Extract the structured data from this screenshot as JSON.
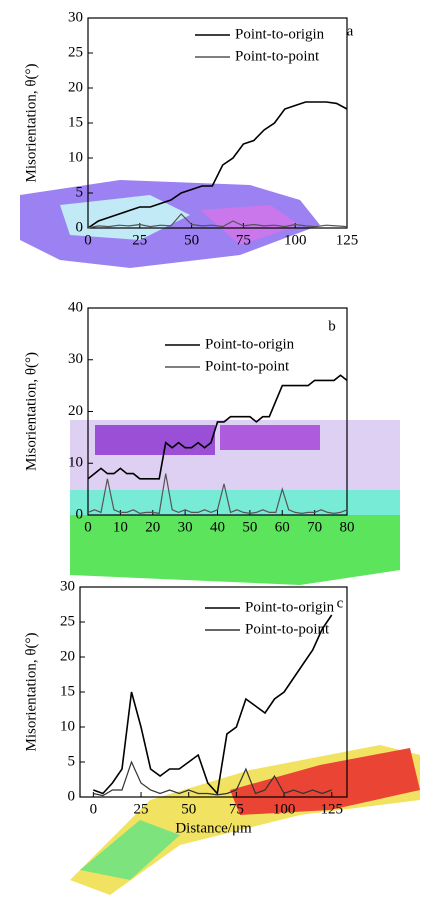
{
  "chart_data": [
    {
      "type": "line",
      "label": "a",
      "ylabel": "Misorientation, θ(°)",
      "x": [
        0,
        5,
        10,
        15,
        20,
        25,
        30,
        35,
        40,
        45,
        50,
        55,
        60,
        65,
        70,
        75,
        80,
        85,
        90,
        95,
        100,
        105,
        110,
        115,
        120,
        125
      ],
      "series": [
        {
          "name": "Point-to-origin",
          "color": "#000000",
          "values": [
            0,
            1,
            1.5,
            2,
            2.5,
            3,
            3,
            3.5,
            4,
            5,
            5.5,
            6,
            6,
            9,
            10,
            12,
            12.5,
            14,
            15,
            17,
            17.5,
            18,
            18,
            18,
            17.8,
            17
          ]
        },
        {
          "name": "Point-to-point",
          "color": "#555555",
          "values": [
            0,
            0.3,
            0.2,
            0.4,
            0.3,
            0.5,
            0.2,
            0.4,
            0.3,
            2,
            0.5,
            0.3,
            0.4,
            0.2,
            1,
            0.3,
            0.5,
            0.3,
            0.4,
            0.2,
            0.5,
            0.3,
            0.2,
            0.4,
            0.3,
            0.2
          ]
        }
      ],
      "xlim": [
        0,
        125
      ],
      "xticks": [
        0,
        25,
        50,
        75,
        100,
        125
      ],
      "ylim": [
        0,
        30
      ],
      "yticks": [
        0,
        5,
        10,
        15,
        20,
        25,
        30
      ]
    },
    {
      "type": "line",
      "label": "b",
      "ylabel": "Misorientation, θ(°)",
      "x": [
        0,
        2,
        4,
        6,
        8,
        10,
        12,
        14,
        16,
        18,
        20,
        22,
        24,
        26,
        28,
        30,
        32,
        34,
        36,
        38,
        40,
        42,
        44,
        46,
        48,
        50,
        52,
        54,
        56,
        58,
        60,
        62,
        64,
        66,
        68,
        70,
        72,
        74,
        76,
        78,
        80
      ],
      "series": [
        {
          "name": "Point-to-origin",
          "color": "#000000",
          "values": [
            7,
            8,
            9,
            8,
            8,
            9,
            8,
            8,
            7,
            7,
            7,
            7,
            14,
            13,
            14,
            13,
            13,
            14,
            13,
            14,
            18,
            18,
            19,
            19,
            19,
            19,
            18,
            19,
            19,
            22,
            25,
            25,
            25,
            25,
            25,
            26,
            26,
            26,
            26,
            27,
            26
          ]
        },
        {
          "name": "Point-to-point",
          "color": "#555555",
          "values": [
            0.5,
            1,
            0.5,
            7,
            1,
            0.5,
            0.5,
            1,
            0.3,
            0.5,
            0.5,
            0.3,
            8,
            1,
            0.5,
            1,
            0.5,
            0.5,
            1,
            0.5,
            1,
            6,
            0.5,
            1,
            0.5,
            0.3,
            0.5,
            1,
            0.5,
            0.5,
            5,
            1,
            0.5,
            0.3,
            0.5,
            0.5,
            1,
            0.5,
            0.3,
            0.5,
            1
          ]
        }
      ],
      "xlim": [
        0,
        80
      ],
      "xticks": [
        0,
        10,
        20,
        30,
        40,
        50,
        60,
        70,
        80
      ],
      "ylim": [
        0,
        40
      ],
      "yticks": [
        0,
        10,
        20,
        30,
        40
      ]
    },
    {
      "type": "line",
      "label": "c",
      "ylabel": "Misorientation, θ(°)",
      "xlabel": "Distance/μm",
      "x": [
        0,
        5,
        10,
        15,
        20,
        25,
        30,
        35,
        40,
        45,
        50,
        55,
        60,
        65,
        70,
        75,
        80,
        85,
        90,
        95,
        100,
        105,
        110,
        115,
        120,
        125
      ],
      "series": [
        {
          "name": "Point-to-origin",
          "color": "#000000",
          "values": [
            1,
            0.5,
            2,
            4,
            15,
            10,
            4,
            3,
            4,
            4,
            5,
            6,
            2,
            0.5,
            9,
            10,
            14,
            13,
            12,
            14,
            15,
            17,
            19,
            21,
            24,
            26
          ]
        },
        {
          "name": "Point-to-point",
          "color": "#333333",
          "values": [
            0.5,
            0.2,
            1,
            1,
            5,
            2,
            1,
            0.5,
            1,
            0.5,
            1,
            0.5,
            0.5,
            0.3,
            0.5,
            1,
            4,
            0.5,
            1,
            3,
            0.5,
            1,
            0.5,
            1,
            0.5,
            1
          ]
        }
      ],
      "xlim": [
        -7,
        133
      ],
      "xticks": [
        0,
        25,
        50,
        75,
        100,
        125
      ],
      "ylim": [
        0,
        30
      ],
      "yticks": [
        0,
        5,
        10,
        15,
        20,
        25,
        30
      ]
    }
  ]
}
